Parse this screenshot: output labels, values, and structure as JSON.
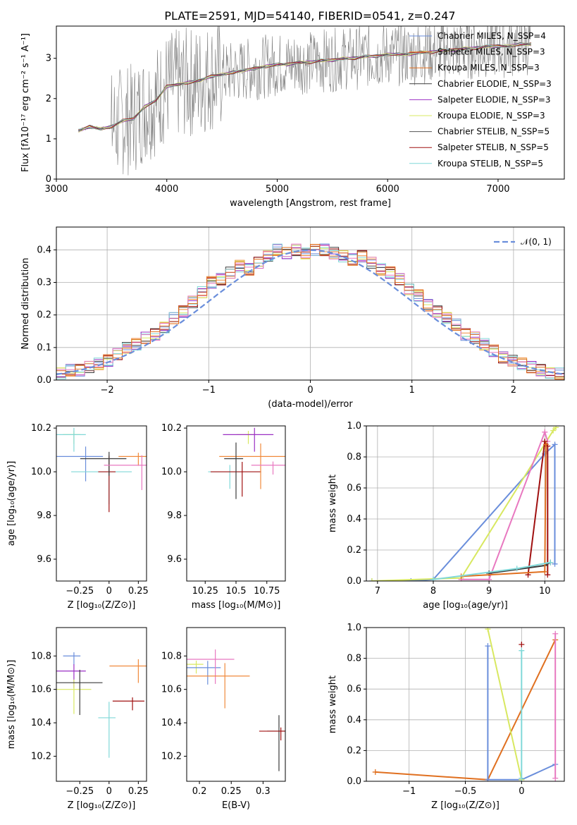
{
  "figure": {
    "title": "PLATE=2591, MJD=54140, FIBERID=0541, z=0.247"
  },
  "colors": {
    "series": [
      "#6a8edb",
      "#f08a3c",
      "#3c3c3c",
      "#9b30c4",
      "#d8e860",
      "#a01010",
      "#80d8d8",
      "#e878c0",
      "#e07020",
      "#7a7a7a"
    ],
    "gaussian": "#6a8edb",
    "data": "#808080"
  },
  "chart_data": [
    {
      "id": "spectrum",
      "type": "line",
      "xlabel": "wavelength [Angstrom, rest frame]",
      "ylabel": "Flux [fλ10⁻¹⁷ erg cm⁻² s⁻¹ A⁻¹]",
      "xlim": [
        3000,
        7600
      ],
      "ylim": [
        0,
        3.8
      ],
      "xticks": [
        3000,
        4000,
        5000,
        6000,
        7000
      ],
      "yticks": [
        0,
        1,
        2,
        3
      ],
      "legend_position": "top-right",
      "series": [
        {
          "name": "Chabrier MILES, N_SSP=4",
          "color": "#6a8edb"
        },
        {
          "name": "Salpeter MILES, N_SSP=3",
          "color": "#f08a3c"
        },
        {
          "name": "Kroupa MILES, N_SSP=3",
          "color": "#e07020"
        },
        {
          "name": "Chabrier ELODIE, N_SSP=3",
          "color": "#3c3c3c"
        },
        {
          "name": "Salpeter ELODIE, N_SSP=3",
          "color": "#9b30c4"
        },
        {
          "name": "Kroupa ELODIE, N_SSP=3",
          "color": "#d8e860"
        },
        {
          "name": "Chabrier STELIB, N_SSP=5",
          "color": "#555555"
        },
        {
          "name": "Salpeter STELIB, N_SSP=5",
          "color": "#a01010"
        },
        {
          "name": "Kroupa STELIB, N_SSP=5",
          "color": "#80d8d8"
        }
      ],
      "model_points": [
        [
          3200,
          1.2
        ],
        [
          3300,
          1.3
        ],
        [
          3400,
          1.25
        ],
        [
          3500,
          1.3
        ],
        [
          3600,
          1.45
        ],
        [
          3700,
          1.5
        ],
        [
          3800,
          1.8
        ],
        [
          3900,
          1.95
        ],
        [
          4000,
          2.3
        ],
        [
          4100,
          2.35
        ],
        [
          4200,
          2.4
        ],
        [
          4300,
          2.45
        ],
        [
          4400,
          2.55
        ],
        [
          4500,
          2.6
        ],
        [
          4600,
          2.65
        ],
        [
          4700,
          2.7
        ],
        [
          4800,
          2.75
        ],
        [
          4900,
          2.8
        ],
        [
          5000,
          2.85
        ],
        [
          5100,
          2.85
        ],
        [
          5200,
          2.9
        ],
        [
          5300,
          2.9
        ],
        [
          5400,
          2.95
        ],
        [
          5500,
          2.95
        ],
        [
          5600,
          3.0
        ],
        [
          5700,
          3.0
        ],
        [
          5800,
          3.05
        ],
        [
          5900,
          3.05
        ],
        [
          6000,
          3.1
        ],
        [
          6100,
          3.1
        ],
        [
          6200,
          3.1
        ],
        [
          6300,
          3.15
        ],
        [
          6400,
          3.15
        ],
        [
          6500,
          3.2
        ],
        [
          6600,
          3.2
        ],
        [
          6700,
          3.25
        ],
        [
          6800,
          3.25
        ],
        [
          6900,
          3.3
        ],
        [
          7000,
          3.3
        ],
        [
          7100,
          3.3
        ],
        [
          7200,
          3.35
        ],
        [
          7300,
          3.35
        ]
      ]
    },
    {
      "id": "residuals",
      "type": "line",
      "xlabel": "(data-model)/error",
      "ylabel": "Normed distribution",
      "xlim": [
        -2.5,
        2.5
      ],
      "ylim": [
        0,
        0.47
      ],
      "xticks": [
        -2,
        -1,
        0,
        1,
        2
      ],
      "yticks": [
        0.0,
        0.1,
        0.2,
        0.3,
        0.4
      ],
      "grid": true,
      "legend_position": "top-right",
      "legend": "𝒩(0, 1)",
      "histogram_center": [
        0.02,
        0.03,
        0.03,
        0.04,
        0.05,
        0.06,
        0.08,
        0.1,
        0.11,
        0.13,
        0.14,
        0.16,
        0.19,
        0.21,
        0.24,
        0.27,
        0.3,
        0.31,
        0.33,
        0.35,
        0.34,
        0.36,
        0.38,
        0.4,
        0.39,
        0.4,
        0.39,
        0.4,
        0.4,
        0.39,
        0.38,
        0.37,
        0.38,
        0.36,
        0.34,
        0.33,
        0.31,
        0.28,
        0.26,
        0.23,
        0.21,
        0.19,
        0.17,
        0.14,
        0.13,
        0.11,
        0.09,
        0.07,
        0.06,
        0.05,
        0.04,
        0.03,
        0.02,
        0.02
      ],
      "histogram_edges": [
        -2.5,
        2.5
      ]
    },
    {
      "id": "age_vs_Z",
      "type": "scatter",
      "xlabel": "Z [log₁₀(Z/Z⊙)]",
      "ylabel": "age  [log₁₀(age/yr)]",
      "xlim": [
        -0.45,
        0.32
      ],
      "ylim": [
        9.5,
        10.21
      ],
      "xticks": [
        -0.25,
        0.0,
        0.25
      ],
      "yticks": [
        9.6,
        9.8,
        10.0,
        10.2
      ],
      "points": [
        {
          "x": -0.3,
          "y": 10.17,
          "color": "#d8e860"
        },
        {
          "x": -0.3,
          "y": 10.17,
          "color": "#80d8d8"
        },
        {
          "x": -0.2,
          "y": 10.07,
          "color": "#6a8edb"
        },
        {
          "x": 0.0,
          "y": 10.0,
          "color": "#80d8d8"
        },
        {
          "x": 0.0,
          "y": 10.0,
          "color": "#a01010"
        },
        {
          "x": 0.25,
          "y": 10.07,
          "color": "#f08a3c"
        },
        {
          "x": 0.0,
          "y": 10.06,
          "color": "#3c3c3c"
        },
        {
          "x": 0.28,
          "y": 10.03,
          "color": "#e878c0"
        }
      ]
    },
    {
      "id": "age_vs_mass",
      "type": "scatter",
      "xlabel": "mass [log₁₀(M/M⊙)]",
      "ylabel": "",
      "xlim": [
        10.1,
        10.9
      ],
      "ylim": [
        9.5,
        10.21
      ],
      "xticks": [
        10.25,
        10.5,
        10.75
      ],
      "yticks": [
        9.6,
        9.8,
        10.0,
        10.2
      ],
      "points": [
        {
          "x": 10.6,
          "y": 10.17,
          "color": "#d8e860"
        },
        {
          "x": 10.45,
          "y": 10.0,
          "color": "#80d8d8"
        },
        {
          "x": 10.55,
          "y": 10.0,
          "color": "#a01010"
        },
        {
          "x": 10.7,
          "y": 10.07,
          "color": "#f08a3c"
        },
        {
          "x": 10.5,
          "y": 10.06,
          "color": "#3c3c3c"
        },
        {
          "x": 10.8,
          "y": 10.03,
          "color": "#e878c0"
        },
        {
          "x": 10.65,
          "y": 10.17,
          "color": "#9b30c4"
        }
      ]
    },
    {
      "id": "mass_weight_vs_age",
      "type": "line",
      "xlabel": "age  [log₁₀(age/yr)]",
      "ylabel": "mass weight",
      "xlim": [
        6.8,
        10.35
      ],
      "ylim": [
        0,
        1.0
      ],
      "xticks": [
        7,
        8,
        9,
        10
      ],
      "yticks": [
        0.0,
        0.2,
        0.4,
        0.6,
        0.8,
        1.0
      ],
      "grid": true,
      "series": [
        {
          "color": "#6a8edb",
          "x": [
            6.9,
            7.6,
            8.0,
            10.0,
            10.18,
            10.18
          ],
          "y": [
            0.0,
            0.0,
            0.01,
            0.82,
            0.88,
            0.11
          ]
        },
        {
          "color": "#d8e860",
          "x": [
            6.9,
            8.5,
            10.15,
            10.2
          ],
          "y": [
            0.0,
            0.02,
            0.97,
            0.99
          ]
        },
        {
          "color": "#e878c0",
          "x": [
            8.5,
            9.0,
            10.0,
            10.05
          ],
          "y": [
            0.01,
            0.01,
            0.96,
            0.9
          ]
        },
        {
          "color": "#a01010",
          "x": [
            9.7,
            10.0,
            10.05,
            10.05
          ],
          "y": [
            0.04,
            0.9,
            0.87,
            0.04
          ]
        },
        {
          "color": "#3c3c3c",
          "x": [
            9.0,
            10.0,
            10.1
          ],
          "y": [
            0.05,
            0.1,
            0.12
          ]
        },
        {
          "color": "#e07020",
          "x": [
            8.5,
            10.0,
            10.02
          ],
          "y": [
            0.03,
            0.06,
            0.88
          ]
        },
        {
          "color": "#80d8d8",
          "x": [
            8.0,
            9.5,
            10.1
          ],
          "y": [
            0.01,
            0.08,
            0.12
          ]
        }
      ]
    },
    {
      "id": "mass_vs_Z",
      "type": "scatter",
      "xlabel": "Z [log₁₀(Z/Z⊙)]",
      "ylabel": "mass [log₁₀(M/M⊙)]",
      "xlim": [
        -0.45,
        0.32
      ],
      "ylim": [
        10.05,
        10.97
      ],
      "xticks": [
        -0.25,
        0.0,
        0.25
      ],
      "yticks": [
        10.2,
        10.4,
        10.6,
        10.8
      ],
      "points": [
        {
          "x": -0.3,
          "y": 10.8,
          "color": "#6a8edb"
        },
        {
          "x": -0.3,
          "y": 10.71,
          "color": "#9b30c4"
        },
        {
          "x": -0.3,
          "y": 10.6,
          "color": "#d8e860"
        },
        {
          "x": -0.25,
          "y": 10.64,
          "color": "#3c3c3c"
        },
        {
          "x": 0.0,
          "y": 10.43,
          "color": "#80d8d8"
        },
        {
          "x": 0.2,
          "y": 10.53,
          "color": "#a01010"
        },
        {
          "x": 0.25,
          "y": 10.74,
          "color": "#f08a3c"
        }
      ]
    },
    {
      "id": "mass_vs_ebv",
      "type": "scatter",
      "xlabel": "E(B-V)",
      "ylabel": "",
      "xlim": [
        0.18,
        0.335
      ],
      "ylim": [
        10.05,
        10.97
      ],
      "xticks": [
        0.2,
        0.25,
        0.3
      ],
      "yticks": [
        10.2,
        10.4,
        10.6,
        10.8
      ],
      "points": [
        {
          "x": 0.195,
          "y": 10.75,
          "color": "#d8e860"
        },
        {
          "x": 0.213,
          "y": 10.73,
          "color": "#6a8edb"
        },
        {
          "x": 0.225,
          "y": 10.78,
          "color": "#e878c0"
        },
        {
          "x": 0.24,
          "y": 10.68,
          "color": "#f08a3c"
        },
        {
          "x": 0.325,
          "y": 10.35,
          "color": "#3c3c3c"
        },
        {
          "x": 0.328,
          "y": 10.35,
          "color": "#a01010"
        }
      ]
    },
    {
      "id": "mass_weight_vs_Z",
      "type": "line",
      "xlabel": "Z [log₁₀(Z/Z⊙)]",
      "ylabel": "mass weight",
      "xlim": [
        -1.38,
        0.38
      ],
      "ylim": [
        0,
        1.0
      ],
      "xticks": [
        -1.0,
        -0.5,
        0.0
      ],
      "yticks": [
        0.0,
        0.2,
        0.4,
        0.6,
        0.8,
        1.0
      ],
      "grid": true,
      "series": [
        {
          "color": "#e07020",
          "x": [
            -1.3,
            -0.3,
            0.3
          ],
          "y": [
            0.06,
            0.01,
            0.92
          ]
        },
        {
          "color": "#6a8edb",
          "x": [
            -0.3,
            -0.3,
            0.0,
            0.3
          ],
          "y": [
            0.88,
            0.01,
            0.01,
            0.11
          ]
        },
        {
          "color": "#d8e860",
          "x": [
            -0.3,
            0.0
          ],
          "y": [
            0.99,
            0.01
          ]
        },
        {
          "color": "#e878c0",
          "x": [
            0.3,
            0.3
          ],
          "y": [
            0.96,
            0.02
          ]
        },
        {
          "color": "#80d8d8",
          "x": [
            0.0,
            0.0
          ],
          "y": [
            0.85,
            0.02
          ]
        },
        {
          "color": "#a01010",
          "x": [
            0.0
          ],
          "y": [
            0.89
          ]
        }
      ]
    }
  ]
}
